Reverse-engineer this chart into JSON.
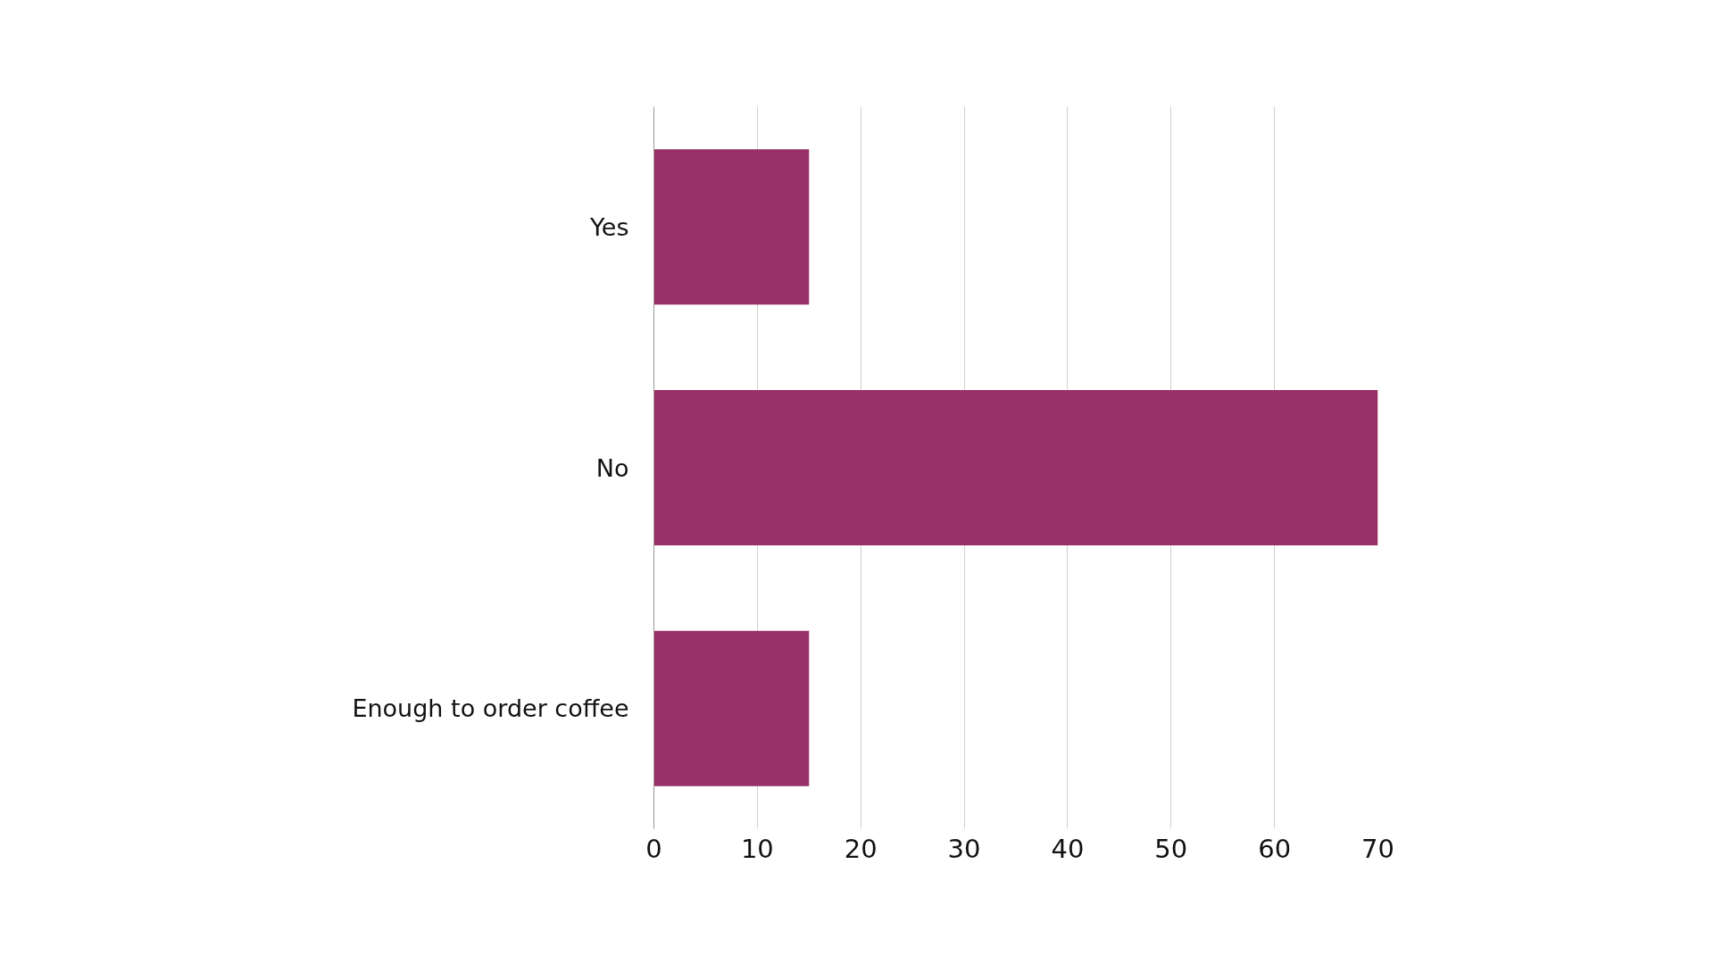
{
  "chart_data": {
    "type": "bar",
    "orientation": "horizontal",
    "categories": [
      "Yes",
      "No",
      "Enough to order coffee"
    ],
    "values": [
      15,
      70,
      15
    ],
    "color": "#992f67",
    "xlim": [
      0,
      70
    ],
    "xticks": [
      0,
      10,
      20,
      30,
      40,
      50,
      60,
      70
    ],
    "grid": "x"
  }
}
